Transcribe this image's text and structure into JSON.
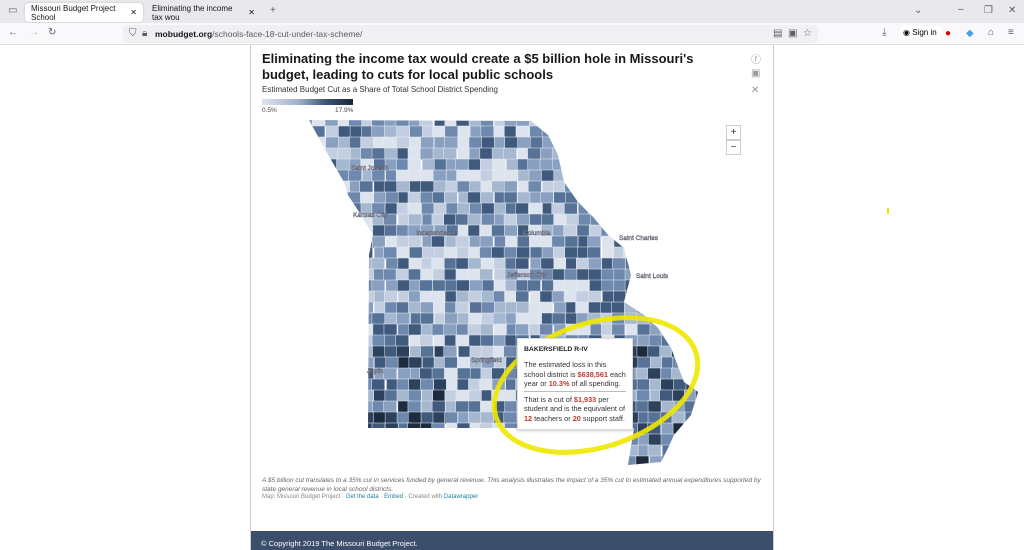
{
  "browser": {
    "tabs": [
      {
        "label": "Missouri Budget Project School",
        "active": true
      },
      {
        "label": "Eliminating the income tax wou",
        "active": false
      }
    ],
    "url_domain": "mobudget.org",
    "url_path": "/schools-face-18-cut-under-tax-scheme/",
    "sign_in": "Sign in"
  },
  "article": {
    "title": "Eliminating the income tax would create a $5 billion hole in Missouri's budget, leading to cuts for local public schools",
    "subtitle": "Estimated Budget Cut as a Share of Total School District Spending",
    "legend": {
      "min": "0.5%",
      "max": "17.9%",
      "min_value": 0.5,
      "max_value": 17.9,
      "colors": [
        "#dfe5ef",
        "#1b2436"
      ]
    },
    "cities": [
      "Saint Joseph",
      "Kansas City",
      "Independence",
      "Columbia",
      "Jefferson City",
      "Saint Charles",
      "Saint Louis",
      "Joplin",
      "Springfield"
    ],
    "tooltip": {
      "district": "BAKERSFIELD R-IV",
      "l1a": "The estimated loss in this school district is ",
      "loss": "$638,561",
      "l1b": " each year or ",
      "pct": "10.3%",
      "l1c": " of all spending.",
      "l2a": "That is a cut of ",
      "per_student": "$1,933",
      "l2b": " per student and is the equivalent of ",
      "teachers": "12",
      "l2c": " teachers or ",
      "staff": "20",
      "l2d": " support staff."
    },
    "note": "A $5 billion cut translates to a 35% cut in services funded by general revenue. This analysis illustrates the impact of a 35% cut to estimated annual expenditures supported by state general revenue in local school districts.",
    "credits": {
      "source": "Map: Missouri Budget Project · ",
      "get_data": "Get the data",
      "sep": " · ",
      "embed": "Embed",
      "created": " · Created with ",
      "dw": "Datawrapper"
    },
    "footer": "© Copyright 2019 The Missouri Budget Project."
  },
  "annotation_color": "#f0e800"
}
